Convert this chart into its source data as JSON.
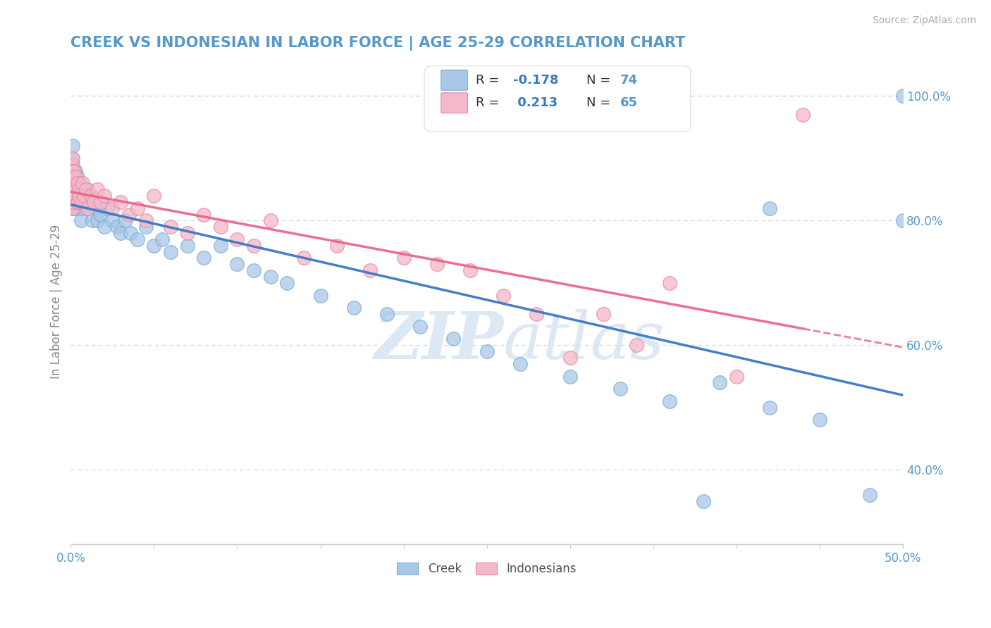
{
  "title": "CREEK VS INDONESIAN IN LABOR FORCE | AGE 25-29 CORRELATION CHART",
  "source_text": "Source: ZipAtlas.com",
  "ylabel": "In Labor Force | Age 25-29",
  "ytick_labels": [
    "40.0%",
    "60.0%",
    "80.0%",
    "100.0%"
  ],
  "ytick_values": [
    0.4,
    0.6,
    0.8,
    1.0
  ],
  "xlim": [
    0.0,
    0.5
  ],
  "ylim": [
    0.28,
    1.06
  ],
  "creek_color": "#a8c8e8",
  "creek_edge_color": "#7aafd4",
  "indonesian_color": "#f4b8c8",
  "indonesian_edge_color": "#e888a8",
  "creek_line_color": "#3a78c4",
  "indonesian_line_color": "#e86888",
  "background_color": "#ffffff",
  "watermark_zip": "ZIP",
  "watermark_atlas": "atlas",
  "legend_R_creek": "-0.178",
  "legend_N_creek": "74",
  "legend_R_indonesian": "0.213",
  "legend_N_indonesian": "65",
  "grid_color": "#c8d8e8",
  "title_color": "#5599cc",
  "axis_label_color": "#5599cc",
  "ylabel_color": "#888888",
  "creek_x": [
    0.001,
    0.001,
    0.001,
    0.001,
    0.001,
    0.001,
    0.001,
    0.001,
    0.001,
    0.001,
    0.002,
    0.002,
    0.002,
    0.002,
    0.002,
    0.003,
    0.003,
    0.003,
    0.003,
    0.004,
    0.004,
    0.004,
    0.005,
    0.005,
    0.006,
    0.006,
    0.007,
    0.007,
    0.008,
    0.009,
    0.01,
    0.011,
    0.012,
    0.013,
    0.015,
    0.016,
    0.018,
    0.02,
    0.022,
    0.025,
    0.028,
    0.03,
    0.033,
    0.036,
    0.04,
    0.045,
    0.05,
    0.055,
    0.06,
    0.07,
    0.08,
    0.09,
    0.1,
    0.11,
    0.12,
    0.13,
    0.15,
    0.17,
    0.19,
    0.21,
    0.23,
    0.25,
    0.27,
    0.3,
    0.33,
    0.36,
    0.39,
    0.42,
    0.45,
    0.48,
    0.5,
    0.5,
    0.42,
    0.38
  ],
  "creek_y": [
    0.88,
    0.86,
    0.9,
    0.84,
    0.92,
    0.82,
    0.87,
    0.85,
    0.89,
    0.83,
    0.87,
    0.85,
    0.84,
    0.86,
    0.82,
    0.88,
    0.83,
    0.86,
    0.84,
    0.85,
    0.87,
    0.82,
    0.86,
    0.84,
    0.85,
    0.8,
    0.84,
    0.82,
    0.83,
    0.84,
    0.85,
    0.82,
    0.84,
    0.8,
    0.82,
    0.8,
    0.81,
    0.79,
    0.82,
    0.8,
    0.79,
    0.78,
    0.8,
    0.78,
    0.77,
    0.79,
    0.76,
    0.77,
    0.75,
    0.76,
    0.74,
    0.76,
    0.73,
    0.72,
    0.71,
    0.7,
    0.68,
    0.66,
    0.65,
    0.63,
    0.61,
    0.59,
    0.57,
    0.55,
    0.53,
    0.51,
    0.54,
    0.5,
    0.48,
    0.36,
    1.0,
    0.8,
    0.82,
    0.35
  ],
  "indo_x": [
    0.001,
    0.001,
    0.001,
    0.001,
    0.001,
    0.001,
    0.001,
    0.001,
    0.001,
    0.001,
    0.001,
    0.001,
    0.001,
    0.001,
    0.001,
    0.002,
    0.002,
    0.002,
    0.002,
    0.002,
    0.002,
    0.003,
    0.003,
    0.003,
    0.004,
    0.004,
    0.005,
    0.005,
    0.006,
    0.007,
    0.008,
    0.009,
    0.01,
    0.012,
    0.014,
    0.016,
    0.018,
    0.02,
    0.025,
    0.03,
    0.035,
    0.04,
    0.045,
    0.05,
    0.06,
    0.07,
    0.08,
    0.09,
    0.1,
    0.11,
    0.12,
    0.14,
    0.16,
    0.18,
    0.2,
    0.22,
    0.24,
    0.26,
    0.28,
    0.3,
    0.32,
    0.34,
    0.36,
    0.4,
    0.44
  ],
  "indo_y": [
    0.89,
    0.87,
    0.9,
    0.86,
    0.88,
    0.84,
    0.85,
    0.83,
    0.86,
    0.87,
    0.84,
    0.85,
    0.88,
    0.82,
    0.86,
    0.87,
    0.85,
    0.83,
    0.88,
    0.84,
    0.86,
    0.85,
    0.87,
    0.84,
    0.86,
    0.83,
    0.85,
    0.84,
    0.83,
    0.86,
    0.84,
    0.85,
    0.82,
    0.84,
    0.83,
    0.85,
    0.83,
    0.84,
    0.82,
    0.83,
    0.81,
    0.82,
    0.8,
    0.84,
    0.79,
    0.78,
    0.81,
    0.79,
    0.77,
    0.76,
    0.8,
    0.74,
    0.76,
    0.72,
    0.74,
    0.73,
    0.72,
    0.68,
    0.65,
    0.58,
    0.65,
    0.6,
    0.7,
    0.55,
    0.97
  ]
}
